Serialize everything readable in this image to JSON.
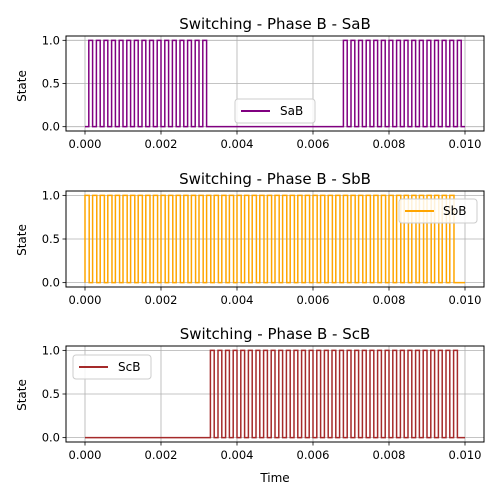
{
  "chart_data": [
    {
      "type": "line",
      "title": "Switching - Phase B - SaB",
      "xlabel": "",
      "ylabel": "State",
      "xlim": [
        -0.0005,
        0.0105
      ],
      "ylim": [
        -0.05,
        1.05
      ],
      "xticks": [
        "0.000",
        "0.002",
        "0.004",
        "0.006",
        "0.008",
        "0.010"
      ],
      "yticks": [
        "0.0",
        "0.5",
        "1.0"
      ],
      "grid": true,
      "legend_position": "lower-center",
      "series": [
        {
          "name": "SaB",
          "color": "#800080",
          "style": "pwm",
          "active_windows": [
            [
              0.0001,
              0.0033
            ],
            [
              0.0068,
              0.0099
            ]
          ],
          "pulse_period": 0.0002,
          "duty": 0.5,
          "x_end": 0.01
        }
      ]
    },
    {
      "type": "line",
      "title": "Switching - Phase B - SbB",
      "xlabel": "",
      "ylabel": "State",
      "xlim": [
        -0.0005,
        0.0105
      ],
      "ylim": [
        -0.05,
        1.05
      ],
      "xticks": [
        "0.000",
        "0.002",
        "0.004",
        "0.006",
        "0.008",
        "0.010"
      ],
      "yticks": [
        "0.0",
        "0.5",
        "1.0"
      ],
      "grid": true,
      "legend_position": "upper-right",
      "series": [
        {
          "name": "SbB",
          "color": "#ffa500",
          "style": "pwm",
          "active_windows": [
            [
              0.0,
              0.0099
            ]
          ],
          "pulse_period": 0.0002,
          "duty": 0.55,
          "x_end": 0.01
        }
      ]
    },
    {
      "type": "line",
      "title": "Switching - Phase B - ScB",
      "xlabel": "Time",
      "ylabel": "State",
      "xlim": [
        -0.0005,
        0.0105
      ],
      "ylim": [
        -0.05,
        1.05
      ],
      "xticks": [
        "0.000",
        "0.002",
        "0.004",
        "0.006",
        "0.008",
        "0.010"
      ],
      "yticks": [
        "0.0",
        "0.5",
        "1.0"
      ],
      "grid": true,
      "legend_position": "upper-left",
      "series": [
        {
          "name": "ScB",
          "color": "#a52a2a",
          "style": "pwm",
          "active_windows": [
            [
              0.0033,
              0.0099
            ]
          ],
          "pulse_period": 0.0002,
          "duty": 0.5,
          "x_end": 0.01
        }
      ]
    }
  ]
}
